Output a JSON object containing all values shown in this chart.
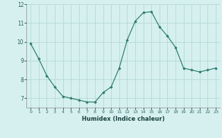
{
  "x": [
    0,
    1,
    2,
    3,
    4,
    5,
    6,
    7,
    8,
    9,
    10,
    11,
    12,
    13,
    14,
    15,
    16,
    17,
    18,
    19,
    20,
    21,
    22,
    23
  ],
  "y": [
    9.9,
    9.1,
    8.2,
    7.6,
    7.1,
    7.0,
    6.9,
    6.8,
    6.8,
    7.3,
    7.6,
    8.6,
    10.1,
    11.1,
    11.55,
    11.6,
    10.8,
    10.3,
    9.7,
    8.6,
    8.5,
    8.4,
    8.5,
    8.6
  ],
  "line_color": "#2e7d6e",
  "marker": "D",
  "marker_size": 1.8,
  "bg_color": "#d6f0f0",
  "grid_color": "#b8dada",
  "xlabel": "Humidex (Indice chaleur)",
  "xlim": [
    -0.5,
    23.5
  ],
  "ylim": [
    6.5,
    12.0
  ],
  "yticks": [
    7,
    8,
    9,
    10,
    11,
    12
  ],
  "xticks": [
    0,
    1,
    2,
    3,
    4,
    5,
    6,
    7,
    8,
    9,
    10,
    11,
    12,
    13,
    14,
    15,
    16,
    17,
    18,
    19,
    20,
    21,
    22,
    23
  ],
  "tick_label_color": "#2e6060",
  "xlabel_color": "#1a4040"
}
